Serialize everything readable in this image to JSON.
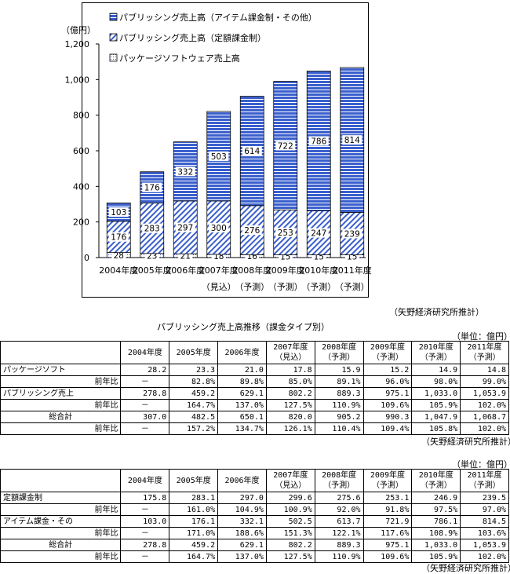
{
  "chart_data": {
    "type": "bar",
    "stacked": true,
    "y_unit_label": "（億円）",
    "ylim": [
      0,
      1200
    ],
    "y_ticks": [
      "0",
      "200",
      "400",
      "600",
      "800",
      "1,000",
      "1,200"
    ],
    "categories": [
      "2004年度",
      "2005年度",
      "2006年度",
      "2007年度",
      "2008年度",
      "2009年度",
      "2010年度",
      "2011年度"
    ],
    "category_notes": [
      "",
      "",
      "",
      "（見込）",
      "（予測）",
      "（予測）",
      "（予測）",
      "（予測）"
    ],
    "series": [
      {
        "name": "パッケージソフトウェア売上高",
        "values": [
          28,
          23,
          21,
          18,
          16,
          15,
          15,
          15
        ],
        "pattern": "dots",
        "color": "#3a5fcd"
      },
      {
        "name": "パブリッシング売上高（定額課金制）",
        "values": [
          176,
          283,
          297,
          300,
          276,
          253,
          247,
          239
        ],
        "pattern": "diagonal",
        "color": "#3a5fcd"
      },
      {
        "name": "パブリッシング売上高（アイテム課金制・その他）",
        "values": [
          103,
          176,
          332,
          503,
          614,
          722,
          786,
          814
        ],
        "pattern": "horizontal",
        "color": "#3a5fcd"
      }
    ],
    "legend_position": "top-left",
    "grid": false
  },
  "source_note": "（矢野経済研究所推計）",
  "table1": {
    "title": "パブリッシング売上高推移（課金タイプ別）",
    "unit": "（単位：億円）",
    "headers": [
      [
        "2004年度",
        ""
      ],
      [
        "2005年度",
        ""
      ],
      [
        "2006年度",
        ""
      ],
      [
        "2007年度",
        "（見込）"
      ],
      [
        "2008年度",
        "（予測）"
      ],
      [
        "2009年度",
        "（予測）"
      ],
      [
        "2010年度",
        "（予測）"
      ],
      [
        "2011年度",
        "（予測）"
      ]
    ],
    "rows": [
      {
        "label": "パッケージソフト",
        "values": [
          "28.2",
          "23.3",
          "21.0",
          "17.8",
          "15.9",
          "15.2",
          "14.9",
          "14.8"
        ]
      },
      {
        "label": "前年比",
        "values": [
          "－",
          "82.8%",
          "89.8%",
          "85.0%",
          "89.1%",
          "96.0%",
          "98.0%",
          "99.0%"
        ],
        "sub": true
      },
      {
        "label": "パブリッシング売上",
        "values": [
          "278.8",
          "459.2",
          "629.1",
          "802.2",
          "889.3",
          "975.1",
          "1,033.0",
          "1,053.9"
        ]
      },
      {
        "label": "前年比",
        "values": [
          "－",
          "164.7%",
          "137.0%",
          "127.5%",
          "110.9%",
          "109.6%",
          "105.9%",
          "102.0%"
        ],
        "sub": true
      },
      {
        "label": "総合計",
        "values": [
          "307.0",
          "482.5",
          "650.1",
          "820.0",
          "905.2",
          "990.3",
          "1,047.9",
          "1,068.7"
        ],
        "total": true
      },
      {
        "label": "前年比",
        "values": [
          "－",
          "157.2%",
          "134.7%",
          "126.1%",
          "110.4%",
          "109.4%",
          "105.8%",
          "102.0%"
        ],
        "sub": true
      }
    ],
    "note": "（矢野経済研究所推計）"
  },
  "table2": {
    "unit": "（単位：億円）",
    "headers": [
      [
        "2004年度",
        ""
      ],
      [
        "2005年度",
        ""
      ],
      [
        "2006年度",
        ""
      ],
      [
        "2007年度",
        "（見込）"
      ],
      [
        "2008年度",
        "（予測）"
      ],
      [
        "2009年度",
        "（予測）"
      ],
      [
        "2010年度",
        "（予測）"
      ],
      [
        "2011年度",
        "（予測）"
      ]
    ],
    "rows": [
      {
        "label": "定額課金制",
        "values": [
          "175.8",
          "283.1",
          "297.0",
          "299.6",
          "275.6",
          "253.1",
          "246.9",
          "239.5"
        ]
      },
      {
        "label": "前年比",
        "values": [
          "－",
          "161.0%",
          "104.9%",
          "100.9%",
          "92.0%",
          "91.8%",
          "97.5%",
          "97.0%"
        ],
        "sub": true
      },
      {
        "label": "アイテム課金・その",
        "values": [
          "103.0",
          "176.1",
          "332.1",
          "502.5",
          "613.7",
          "721.9",
          "786.1",
          "814.5"
        ]
      },
      {
        "label": "前年比",
        "values": [
          "－",
          "171.0%",
          "188.6%",
          "151.3%",
          "122.1%",
          "117.6%",
          "108.9%",
          "103.6%"
        ],
        "sub": true
      },
      {
        "label": "総合計",
        "values": [
          "278.8",
          "459.2",
          "629.1",
          "802.2",
          "889.3",
          "975.1",
          "1,033.0",
          "1,053.9"
        ],
        "total": true
      },
      {
        "label": "前年比",
        "values": [
          "－",
          "164.7%",
          "137.0%",
          "127.5%",
          "110.9%",
          "109.6%",
          "105.9%",
          "102.0%"
        ],
        "sub": true
      }
    ],
    "note": "（矢野経済研究所推計）"
  }
}
